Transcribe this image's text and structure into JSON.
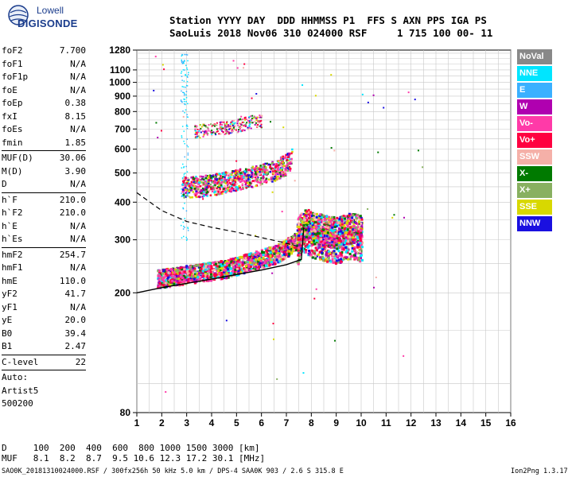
{
  "logo": {
    "line1": "Lowell",
    "line2": "DIGISONDE"
  },
  "header": {
    "line1": "Station YYYY DAY  DDD HHMMSS P1  FFS S AXN PPS IGA PS",
    "line2": "SaoLuis 2018 Nov06 310 024000 RSF     1 715 100 00- 11"
  },
  "params": [
    {
      "name": "foF2",
      "value": "7.700"
    },
    {
      "name": "foF1",
      "value": "N/A"
    },
    {
      "name": "foF1p",
      "value": "N/A"
    },
    {
      "name": "foE",
      "value": "N/A"
    },
    {
      "name": "foEp",
      "value": "0.38"
    },
    {
      "name": "fxI",
      "value": "8.15"
    },
    {
      "name": "foEs",
      "value": "N/A"
    },
    {
      "name": "fmin",
      "value": "1.85"
    },
    {
      "name": "MUF(D)",
      "value": "30.06"
    },
    {
      "name": "M(D)",
      "value": "3.90"
    },
    {
      "name": "D",
      "value": "N/A"
    },
    {
      "name": "h`F",
      "value": "210.0"
    },
    {
      "name": "h`F2",
      "value": "210.0"
    },
    {
      "name": "h`E",
      "value": "N/A"
    },
    {
      "name": "h`Es",
      "value": "N/A"
    },
    {
      "name": "hmF2",
      "value": "254.7"
    },
    {
      "name": "hmF1",
      "value": "N/A"
    },
    {
      "name": "hmE",
      "value": "110.0"
    },
    {
      "name": "yF2",
      "value": "41.7"
    },
    {
      "name": "yF1",
      "value": "N/A"
    },
    {
      "name": "yE",
      "value": "20.0"
    },
    {
      "name": "B0",
      "value": "39.4"
    },
    {
      "name": "B1",
      "value": "2.47"
    },
    {
      "name": "C-level",
      "value": "22"
    }
  ],
  "auto": {
    "line1": "Auto:",
    "line2": "Artist5",
    "line3": "500200"
  },
  "legend": [
    {
      "label": "NoVal",
      "color": "#888888"
    },
    {
      "label": "NNE",
      "color": "#00e5ff"
    },
    {
      "label": "E",
      "color": "#3ab0ff"
    },
    {
      "label": "W",
      "color": "#b000b0"
    },
    {
      "label": "Vo-",
      "color": "#ff3aa8"
    },
    {
      "label": "Vo+",
      "color": "#ff0040"
    },
    {
      "label": "SSW",
      "color": "#f5b0a8"
    },
    {
      "label": "X-",
      "color": "#007a00"
    },
    {
      "label": "X+",
      "color": "#88b060"
    },
    {
      "label": "SSE",
      "color": "#d8d800"
    },
    {
      "label": "NNW",
      "color": "#1a10e0"
    }
  ],
  "footer": {
    "d_row": "D     100  200  400  600  800 1000 1500 3000 [km]",
    "muf_row": "MUF   8.1  8.2  8.7  9.5 10.6 12.3 17.2 30.1 [MHz]",
    "info": "SAO0K_20181310024000.RSF / 300fx256h 50 kHz 5.0 km / DPS-4 SAA0K 903 / 2.6 S 315.8 E",
    "version": "Ion2Png 1.3.17"
  },
  "chart_data": {
    "type": "scatter",
    "xlabel": "",
    "ylabel": "",
    "xlim": [
      1,
      16
    ],
    "ylim": [
      80,
      1280
    ],
    "x_ticks": [
      "1",
      "2",
      "3",
      "4",
      "5",
      "6",
      "7",
      "8",
      "9",
      "10",
      "11",
      "12",
      "13",
      "14",
      "15",
      "16"
    ],
    "y_ticks": [
      "80",
      "200",
      "300",
      "400",
      "500",
      "600",
      "700",
      "800",
      "900",
      "1000",
      "1100",
      "1280"
    ],
    "y_scale": "log",
    "grid": true,
    "series": [
      {
        "name": "F2 trace (1st hop)",
        "points": [
          [
            1.8,
            225
          ],
          [
            2.5,
            228
          ],
          [
            3.0,
            232
          ],
          [
            3.5,
            235
          ],
          [
            4.0,
            238
          ],
          [
            4.5,
            242
          ],
          [
            5.0,
            248
          ],
          [
            5.5,
            255
          ],
          [
            6.0,
            262
          ],
          [
            6.5,
            270
          ],
          [
            7.0,
            285
          ],
          [
            7.4,
            300
          ],
          [
            7.7,
            330
          ],
          [
            8.0,
            320
          ],
          [
            8.5,
            310
          ],
          [
            9.0,
            305
          ],
          [
            9.5,
            315
          ],
          [
            10.0,
            310
          ]
        ]
      },
      {
        "name": "F2 trace (2nd hop)",
        "points": [
          [
            2.8,
            450
          ],
          [
            3.5,
            455
          ],
          [
            4.0,
            460
          ],
          [
            4.5,
            470
          ],
          [
            5.0,
            478
          ],
          [
            5.5,
            488
          ],
          [
            6.0,
            500
          ],
          [
            6.5,
            515
          ],
          [
            7.0,
            540
          ],
          [
            7.2,
            560
          ]
        ]
      },
      {
        "name": "F2 trace (3rd hop)",
        "points": [
          [
            3.3,
            690
          ],
          [
            4.0,
            700
          ],
          [
            4.5,
            710
          ],
          [
            5.0,
            720
          ],
          [
            5.5,
            740
          ],
          [
            6.0,
            750
          ]
        ]
      },
      {
        "name": "profile",
        "points": [
          [
            1,
            200
          ],
          [
            2,
            208
          ],
          [
            3,
            215
          ],
          [
            4,
            222
          ],
          [
            5,
            230
          ],
          [
            6,
            238
          ],
          [
            7,
            248
          ],
          [
            7.6,
            258
          ],
          [
            7.7,
            330
          ]
        ]
      },
      {
        "name": "extrapolated",
        "points": [
          [
            1,
            430
          ],
          [
            2,
            375
          ],
          [
            3,
            345
          ],
          [
            4,
            330
          ],
          [
            5,
            318
          ],
          [
            6,
            305
          ],
          [
            6.8,
            295
          ],
          [
            7.5,
            285
          ]
        ]
      }
    ]
  }
}
